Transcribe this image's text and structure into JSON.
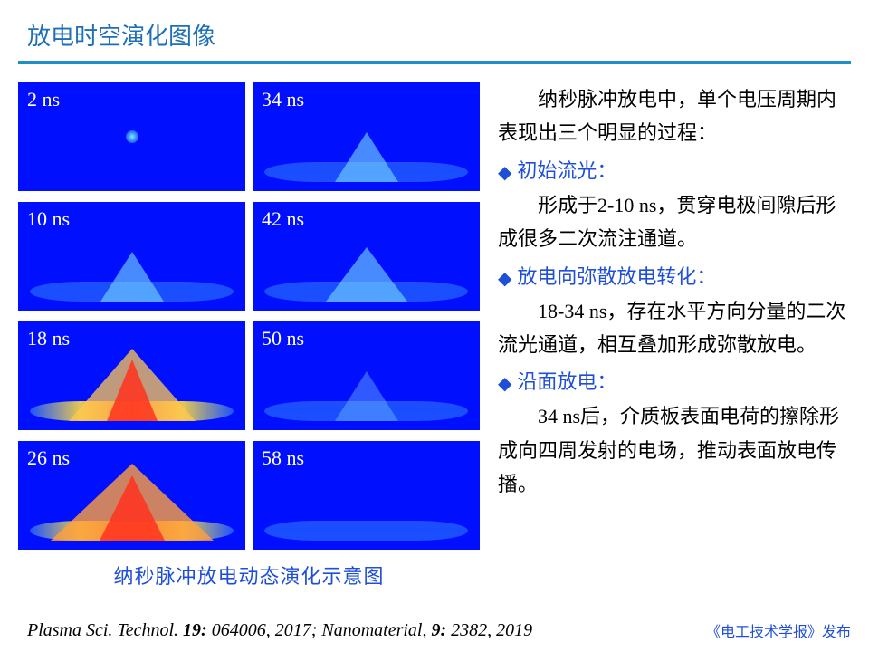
{
  "title": "放电时空演化图像",
  "panels": [
    {
      "label": "2 ns",
      "shape": "dot"
    },
    {
      "label": "34 ns",
      "shape": "cone_band_small"
    },
    {
      "label": "10 ns",
      "shape": "cone_small"
    },
    {
      "label": "42 ns",
      "shape": "cone_band_med"
    },
    {
      "label": "18 ns",
      "shape": "cone_hot"
    },
    {
      "label": "50 ns",
      "shape": "cone_faint"
    },
    {
      "label": "26 ns",
      "shape": "cone_hot_wide"
    },
    {
      "label": "58 ns",
      "shape": "band_only"
    }
  ],
  "caption": "纳秒脉冲放电动态演化示意图",
  "intro": "纳秒脉冲放电中，单个电压周期内表现出三个明显的过程：",
  "bullets": [
    {
      "title": "初始流光：",
      "body": "形成于2-10 ns，贯穿电极间隙后形成很多二次流注通道。"
    },
    {
      "title": "放电向弥散放电转化：",
      "body": "18-34 ns，存在水平方向分量的二次流光通道，相互叠加形成弥散放电。"
    },
    {
      "title": "沿面放电：",
      "body": "34 ns后，介质板表面电荷的擦除形成向四周发射的电场，推动表面放电传播。"
    }
  ],
  "citation_prefix": "Plasma Sci. Technol. ",
  "citation_vol1": "19:",
  "citation_mid": " 064006, 2017; Nanomaterial, ",
  "citation_vol2": "9:",
  "citation_end": " 2382, 2019",
  "source": "《电工技术学报》发布",
  "colors": {
    "title": "#1f6fb8",
    "divider": "#1f8fc8",
    "bullet": "#1f4fd8",
    "panel_bg": "#0010ff"
  }
}
